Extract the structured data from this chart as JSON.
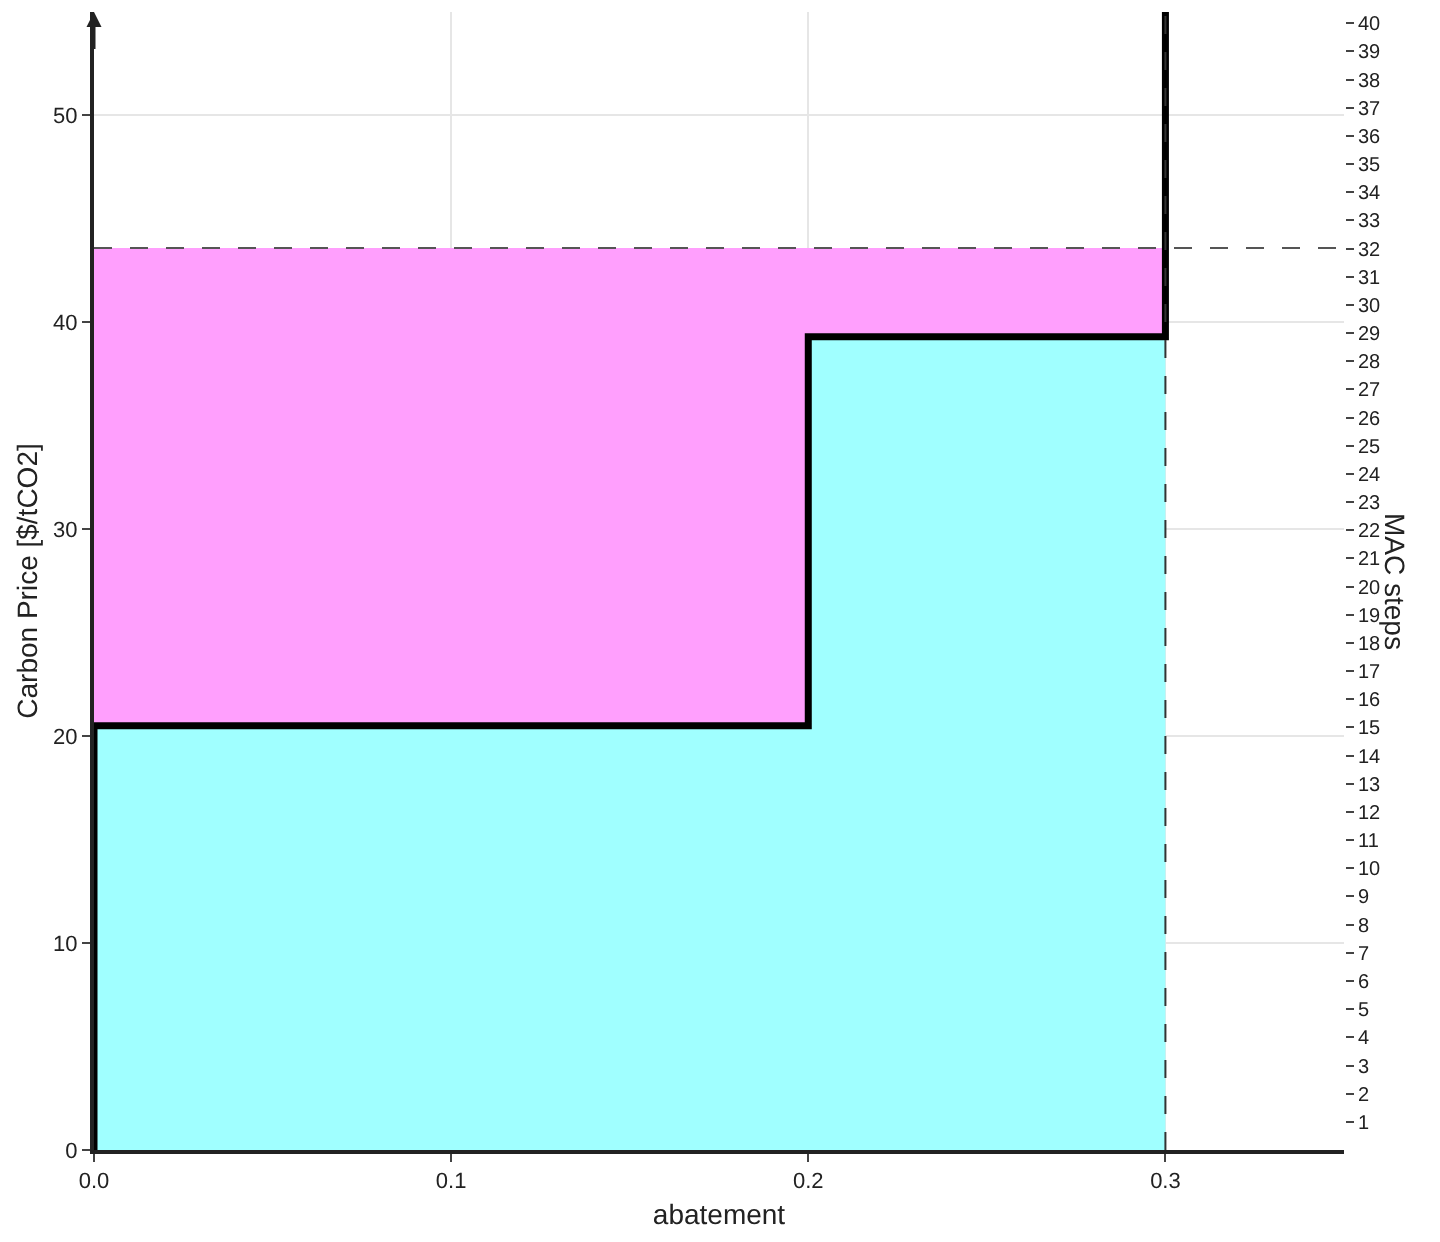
{
  "chart_data": {
    "type": "line",
    "xlabel": "abatement",
    "ylabel": "Carbon Price [$/tCO2]",
    "y2label": "MAC steps",
    "xlim": [
      0,
      0.35
    ],
    "xticks": [
      {
        "value": 0,
        "label": "0.0"
      },
      0.1,
      0.2,
      0.3
    ],
    "ylim": [
      0,
      55
    ],
    "yticks": [
      0,
      10,
      20,
      30,
      40,
      50
    ],
    "y2lim": [
      0,
      40.4
    ],
    "y2ticks": [
      1,
      2,
      3,
      4,
      5,
      6,
      7,
      8,
      9,
      10,
      11,
      12,
      13,
      14,
      15,
      16,
      17,
      18,
      19,
      20,
      21,
      22,
      23,
      24,
      25,
      26,
      27,
      28,
      29,
      30,
      31,
      32,
      33,
      34,
      35,
      36,
      37,
      38,
      39,
      40
    ],
    "grid": true,
    "stacked": true,
    "series": [
      {
        "type": "area",
        "color": "#a0ffff",
        "x": [
          0,
          0.2,
          0.2,
          0.3
        ],
        "values": [
          20.5,
          20.5,
          39.3,
          39.3
        ]
      },
      {
        "type": "area",
        "color": "#ff9ffd",
        "x": [
          0,
          0.2,
          0.2,
          0.3
        ],
        "values": [
          23.1,
          23.1,
          4.3,
          4.3
        ]
      },
      {
        "color": "#000000",
        "x": [
          0,
          0,
          0.2,
          0.2,
          0.3,
          0.3
        ],
        "values": [
          0,
          20.5,
          20.5,
          39.3,
          39.3,
          55
        ]
      }
    ],
    "ref_lines": [
      {
        "axis": "y",
        "value": 43.6,
        "label": null,
        "line_style": "dashed",
        "color": "#555555"
      },
      {
        "axis": "x",
        "value": 0.3,
        "label": null,
        "line_style": "dashed",
        "color": "#333333"
      }
    ]
  }
}
